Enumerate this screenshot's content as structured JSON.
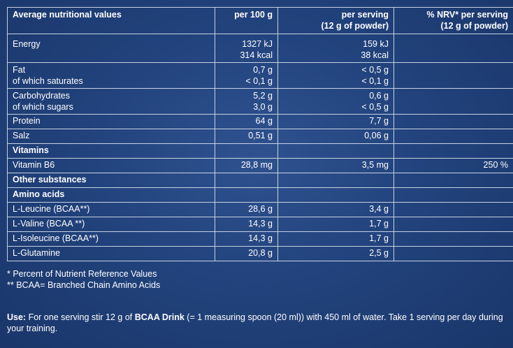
{
  "table": {
    "headers": [
      [
        "Average nutritional values"
      ],
      [
        "per 100 g"
      ],
      [
        "per serving",
        "(12 g of powder)"
      ],
      [
        "% NRV* per serving",
        "(12 g of powder)"
      ]
    ],
    "rows": [
      {
        "kind": "energy",
        "cells": [
          [
            "Energy"
          ],
          [
            "1327 kJ",
            "314 kcal"
          ],
          [
            "159 kJ",
            "38 kcal"
          ],
          [
            ""
          ]
        ]
      },
      {
        "kind": "two",
        "cells": [
          [
            "Fat",
            "of which saturates"
          ],
          [
            "0,7 g",
            "< 0,1 g"
          ],
          [
            "< 0,5 g",
            "< 0,1 g"
          ],
          [
            ""
          ]
        ]
      },
      {
        "kind": "two",
        "cells": [
          [
            "Carbohydrates",
            "of which sugars"
          ],
          [
            "5,2 g",
            "3,0 g"
          ],
          [
            "0,6 g",
            "< 0,5 g"
          ],
          [
            ""
          ]
        ]
      },
      {
        "kind": "one",
        "cells": [
          [
            "Protein"
          ],
          [
            "64 g"
          ],
          [
            "7,7 g"
          ],
          [
            ""
          ]
        ]
      },
      {
        "kind": "one",
        "cells": [
          [
            "Salz"
          ],
          [
            "0,51 g"
          ],
          [
            "0,06 g"
          ],
          [
            ""
          ]
        ]
      },
      {
        "kind": "section",
        "cells": [
          [
            "Vitamins"
          ],
          [
            ""
          ],
          [
            ""
          ],
          [
            ""
          ]
        ]
      },
      {
        "kind": "one",
        "cells": [
          [
            "Vitamin B6"
          ],
          [
            "28,8 mg"
          ],
          [
            "3,5 mg"
          ],
          [
            "250 %"
          ]
        ]
      },
      {
        "kind": "section",
        "cells": [
          [
            "Other substances"
          ],
          [
            ""
          ],
          [
            ""
          ],
          [
            ""
          ]
        ]
      },
      {
        "kind": "section",
        "cells": [
          [
            "Amino acids"
          ],
          [
            ""
          ],
          [
            ""
          ],
          [
            ""
          ]
        ]
      },
      {
        "kind": "one",
        "cells": [
          [
            "L-Leucine (BCAA**)"
          ],
          [
            "28,6 g"
          ],
          [
            "3,4 g"
          ],
          [
            ""
          ]
        ]
      },
      {
        "kind": "one",
        "cells": [
          [
            "L-Valine (BCAA **)"
          ],
          [
            "14,3 g"
          ],
          [
            "1,7 g"
          ],
          [
            ""
          ]
        ]
      },
      {
        "kind": "one",
        "cells": [
          [
            "L-Isoleucine (BCAA**)"
          ],
          [
            "14,3 g"
          ],
          [
            "1,7 g"
          ],
          [
            ""
          ]
        ]
      },
      {
        "kind": "one",
        "cells": [
          [
            "L-Glutamine"
          ],
          [
            "20,8 g"
          ],
          [
            "2,5 g"
          ],
          [
            ""
          ]
        ]
      }
    ]
  },
  "footnotes": [
    "* Percent of Nutrient Reference Values",
    "** BCAA= Branched Chain Amino Acids"
  ],
  "usage": {
    "label": "Use:",
    "text_before": " For one serving stir 12 g of ",
    "product": "BCAA Drink",
    "text_after": " (= 1 measuring spoon (20 ml)) with 450 ml of water. Take 1 serving per day during your training."
  },
  "colors": {
    "background": "#22437d",
    "text": "#ffffff",
    "border": "#c7d2e3"
  }
}
